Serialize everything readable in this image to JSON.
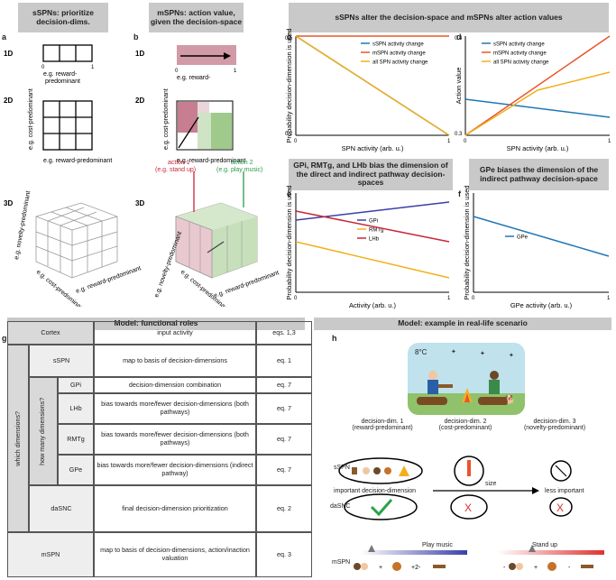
{
  "headers": {
    "a": "sSPNs: prioritize decision-dims.",
    "b": "mSPNs: action value, given the decision-space",
    "cd": "sSPNs alter the decision-space and mSPNs alter action values",
    "e": "GPi, RMTg, and LHb bias the dimension of the direct and indirect pathway decision-spaces",
    "f": "GPe biases the dimension of the indirect pathway decision-space",
    "g": "Model: functional roles",
    "h": "Model: example in real-life scenario"
  },
  "letters": {
    "a": "a",
    "b": "b",
    "c": "c",
    "d": "d",
    "e": "e",
    "f": "f",
    "g": "g",
    "h": "h"
  },
  "dims": {
    "d1": "1D",
    "d2": "2D",
    "d3": "3D"
  },
  "axis": {
    "zero": "0",
    "one": "1",
    "reward": "e.g. reward-predominant",
    "reward_a": "e.g. reward-",
    "reward_b": "predominant",
    "cost": "e.g. cost-predominant",
    "novelty": "e.g. novelty-predominant"
  },
  "actions": {
    "a1": "action 1",
    "a1d": "(e.g. stand up)",
    "a2": "action 2",
    "a2d": "(e.g. play music)"
  },
  "chart_data": [
    {
      "type": "line",
      "ylabel": "Probability decision-dimension is used",
      "xlabel": "SPN activity (arb. u.)",
      "yticks": [
        "0.5",
        "0.2"
      ],
      "xticks": [
        "0",
        "1"
      ],
      "series": [
        {
          "name": "sSPN activity change",
          "color": "#1f77b4",
          "x": [
            0,
            1
          ],
          "y": [
            0.5,
            0.2
          ]
        },
        {
          "name": "mSPN activity change",
          "color": "#e8552a",
          "x": [
            0,
            1
          ],
          "y": [
            0.5,
            0.5
          ]
        },
        {
          "name": "all SPN activity change",
          "color": "#f2b01e",
          "x": [
            0,
            1
          ],
          "y": [
            0.5,
            0.2
          ]
        }
      ]
    },
    {
      "type": "line",
      "ylabel": "Action value",
      "xlabel": "SPN activity (arb. u.)",
      "yticks": [
        "0.4",
        "0.3"
      ],
      "xticks": [
        "0",
        "1"
      ],
      "series": [
        {
          "name": "sSPN activity change",
          "color": "#1f77b4",
          "x": [
            0,
            1
          ],
          "y": [
            0.34,
            0.32
          ]
        },
        {
          "name": "mSPN activity change",
          "color": "#e8552a",
          "x": [
            0,
            1
          ],
          "y": [
            0.3,
            0.41
          ]
        },
        {
          "name": "all SPN activity change",
          "color": "#f2b01e",
          "x": [
            0,
            0.5,
            1
          ],
          "y": [
            0.3,
            0.35,
            0.37
          ]
        }
      ]
    },
    {
      "type": "line",
      "ylabel": "Probability decision-dimension is used",
      "xlabel": "Activity (arb. u.)",
      "xticks": [
        "0",
        "1"
      ],
      "series": [
        {
          "name": "GPi",
          "color": "#3b3fa8",
          "x": [
            0,
            1
          ],
          "y": [
            0.7,
            0.8
          ]
        },
        {
          "name": "RMTg",
          "color": "#f2b01e",
          "x": [
            0,
            1
          ],
          "y": [
            0.58,
            0.38
          ]
        },
        {
          "name": "LHb",
          "color": "#c8273a",
          "x": [
            0,
            1
          ],
          "y": [
            0.75,
            0.58
          ]
        }
      ]
    },
    {
      "type": "line",
      "ylabel": "Probability decision-dimension is used",
      "xlabel": "GPe activity (arb. u.)",
      "xticks": [
        "0",
        "1"
      ],
      "series": [
        {
          "name": "GPe",
          "color": "#1f77b4",
          "x": [
            0,
            1
          ],
          "y": [
            0.72,
            0.5
          ]
        }
      ]
    }
  ],
  "table": {
    "cortex": "Cortex",
    "cortex_role": "input activity",
    "cortex_eq": "eqs. 1,3",
    "which": "which dimensions?",
    "howmany": "how many dimensions?",
    "rows": [
      {
        "name": "sSPN",
        "role": "map to basis of decision-dimensions",
        "eq": "eq. 1"
      },
      {
        "name": "GPi",
        "role": "decision-dimension combination",
        "eq": "eq. 7"
      },
      {
        "name": "LHb",
        "role": "bias towards more/fewer decision-dimensions (both pathways)",
        "eq": "eq. 7"
      },
      {
        "name": "RMTg",
        "role": "bias towards more/fewer decision-dimensions (both pathways)",
        "eq": "eq. 7"
      },
      {
        "name": "GPe",
        "role": "bias towards more/fewer decision-dimensions (indirect pathway)",
        "eq": "eq. 7"
      },
      {
        "name": "daSNC",
        "role": "final decision-dimension prioritization",
        "eq": "eq. 2"
      },
      {
        "name": "mSPN",
        "role": "map to basis of decision-dimensions, action/inaction valuation",
        "eq": "eq. 3"
      }
    ]
  },
  "scenario": {
    "temp": "8°C",
    "dims": [
      {
        "t": "decision-dim. 1",
        "s": "(reward-predominant)"
      },
      {
        "t": "decision-dim. 2",
        "s": "(cost-predominant)"
      },
      {
        "t": "decision-dim. 3",
        "s": "(novelty-predominant)"
      }
    ],
    "sspn": "sSPN",
    "dasnc": "daSNC",
    "mspn": "mSPN",
    "important": "important decision-dimension",
    "size": "size",
    "less": "less important",
    "play": "Play music",
    "stand": "Stand up",
    "plus": "+",
    "plus2": "+2-",
    "minus": "-"
  }
}
